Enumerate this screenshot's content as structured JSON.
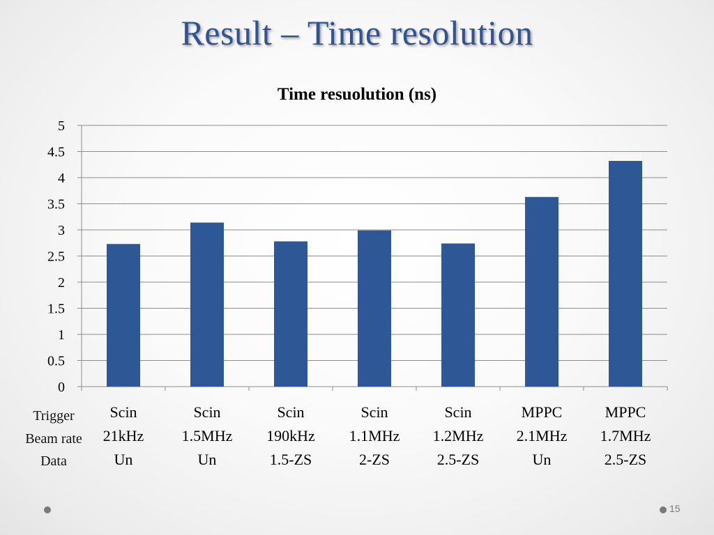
{
  "slide": {
    "title": "Result – Time resolution",
    "row_labels": [
      "Trigger",
      "Beam rate",
      "Data"
    ],
    "page_number": "15"
  },
  "chart_data": {
    "type": "bar",
    "title": "Time resuolution (ns)",
    "categories": [
      [
        "Scin",
        "21kHz",
        "Un"
      ],
      [
        "Scin",
        "1.5MHz",
        "Un"
      ],
      [
        "Scin",
        "190kHz",
        "1.5-ZS"
      ],
      [
        "Scin",
        "1.1MHz",
        "2-ZS"
      ],
      [
        "Scin",
        "1.2MHz",
        "2.5-ZS"
      ],
      [
        "MPPC",
        "2.1MHz",
        "Un"
      ],
      [
        "MPPC",
        "1.7MHz",
        "2.5-ZS"
      ]
    ],
    "values": [
      2.73,
      3.14,
      2.78,
      2.99,
      2.74,
      3.63,
      4.32
    ],
    "yticks": [
      "0",
      "0.5",
      "1",
      "1.5",
      "2",
      "2.5",
      "3",
      "3.5",
      "4",
      "4.5",
      "5"
    ],
    "ylim": [
      0,
      5
    ],
    "grid": true,
    "legend": "none",
    "bar_color": "#2e5796",
    "grid_color": "#8c8c8c"
  }
}
